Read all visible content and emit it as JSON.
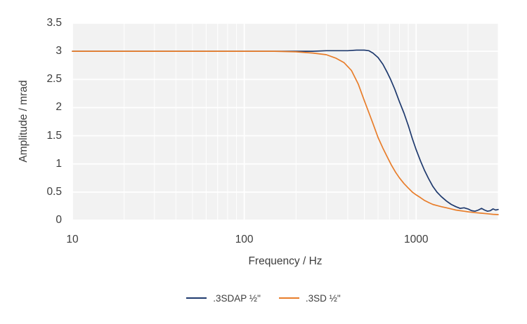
{
  "colors": {
    "page_background": "#ffffff",
    "plot_background": "#f2f2f2",
    "gridline": "#ffffff",
    "text": "#3d3d3d",
    "series_blue": "#1f3a6e",
    "series_orange": "#e87d2a"
  },
  "chart_data": {
    "type": "line",
    "title": "",
    "xlabel": "Frequency / Hz",
    "ylabel": "Amplitude / mrad",
    "x_scale": "log",
    "xlim": [
      10,
      3000
    ],
    "ylim": [
      0,
      3.5
    ],
    "y_ticks": [
      0,
      0.5,
      1,
      1.5,
      2,
      2.5,
      3,
      3.5
    ],
    "y_tick_labels": [
      "0",
      "0.5",
      "1",
      "1.5",
      "2",
      "2.5",
      "3",
      "3.5"
    ],
    "x_major_ticks": [
      10,
      100,
      1000
    ],
    "x_tick_labels": [
      "10",
      "100",
      "1000"
    ],
    "grid": "major-and-minor-white-on-gray",
    "legend_position": "bottom-center",
    "series": [
      {
        "name": ".3SDAP ½\"",
        "color": "#1f3a6e",
        "points": [
          [
            10,
            3.0
          ],
          [
            15,
            3.0
          ],
          [
            20,
            3.0
          ],
          [
            30,
            3.0
          ],
          [
            50,
            3.0
          ],
          [
            70,
            3.0
          ],
          [
            100,
            3.0
          ],
          [
            150,
            3.0
          ],
          [
            200,
            3.0
          ],
          [
            250,
            3.0
          ],
          [
            300,
            3.01
          ],
          [
            350,
            3.01
          ],
          [
            400,
            3.01
          ],
          [
            450,
            3.02
          ],
          [
            500,
            3.02
          ],
          [
            530,
            3.01
          ],
          [
            560,
            2.97
          ],
          [
            600,
            2.89
          ],
          [
            640,
            2.77
          ],
          [
            680,
            2.62
          ],
          [
            710,
            2.5
          ],
          [
            750,
            2.33
          ],
          [
            800,
            2.1
          ],
          [
            850,
            1.9
          ],
          [
            900,
            1.68
          ],
          [
            950,
            1.45
          ],
          [
            1000,
            1.25
          ],
          [
            1060,
            1.05
          ],
          [
            1120,
            0.88
          ],
          [
            1180,
            0.74
          ],
          [
            1250,
            0.6
          ],
          [
            1320,
            0.5
          ],
          [
            1400,
            0.42
          ],
          [
            1500,
            0.34
          ],
          [
            1600,
            0.28
          ],
          [
            1700,
            0.24
          ],
          [
            1800,
            0.21
          ],
          [
            1900,
            0.22
          ],
          [
            2000,
            0.2
          ],
          [
            2100,
            0.17
          ],
          [
            2200,
            0.16
          ],
          [
            2300,
            0.18
          ],
          [
            2400,
            0.21
          ],
          [
            2500,
            0.18
          ],
          [
            2600,
            0.16
          ],
          [
            2700,
            0.17
          ],
          [
            2800,
            0.2
          ],
          [
            2900,
            0.18
          ],
          [
            3000,
            0.19
          ]
        ]
      },
      {
        "name": ".3SD ½\"",
        "color": "#e87d2a",
        "points": [
          [
            10,
            3.0
          ],
          [
            15,
            3.0
          ],
          [
            20,
            3.0
          ],
          [
            30,
            3.0
          ],
          [
            50,
            3.0
          ],
          [
            70,
            3.0
          ],
          [
            100,
            3.0
          ],
          [
            150,
            3.0
          ],
          [
            200,
            2.99
          ],
          [
            250,
            2.97
          ],
          [
            300,
            2.94
          ],
          [
            340,
            2.88
          ],
          [
            380,
            2.8
          ],
          [
            420,
            2.66
          ],
          [
            460,
            2.42
          ],
          [
            500,
            2.12
          ],
          [
            540,
            1.85
          ],
          [
            560,
            1.72
          ],
          [
            600,
            1.47
          ],
          [
            640,
            1.28
          ],
          [
            680,
            1.12
          ],
          [
            720,
            0.97
          ],
          [
            760,
            0.85
          ],
          [
            800,
            0.75
          ],
          [
            850,
            0.65
          ],
          [
            900,
            0.57
          ],
          [
            950,
            0.5
          ],
          [
            1000,
            0.45
          ],
          [
            1060,
            0.4
          ],
          [
            1120,
            0.35
          ],
          [
            1190,
            0.31
          ],
          [
            1250,
            0.28
          ],
          [
            1320,
            0.26
          ],
          [
            1400,
            0.24
          ],
          [
            1500,
            0.22
          ],
          [
            1600,
            0.2
          ],
          [
            1700,
            0.18
          ],
          [
            1800,
            0.17
          ],
          [
            1900,
            0.16
          ],
          [
            2000,
            0.15
          ],
          [
            2200,
            0.135
          ],
          [
            2400,
            0.125
          ],
          [
            2600,
            0.115
          ],
          [
            2800,
            0.105
          ],
          [
            3000,
            0.1
          ]
        ]
      }
    ]
  }
}
